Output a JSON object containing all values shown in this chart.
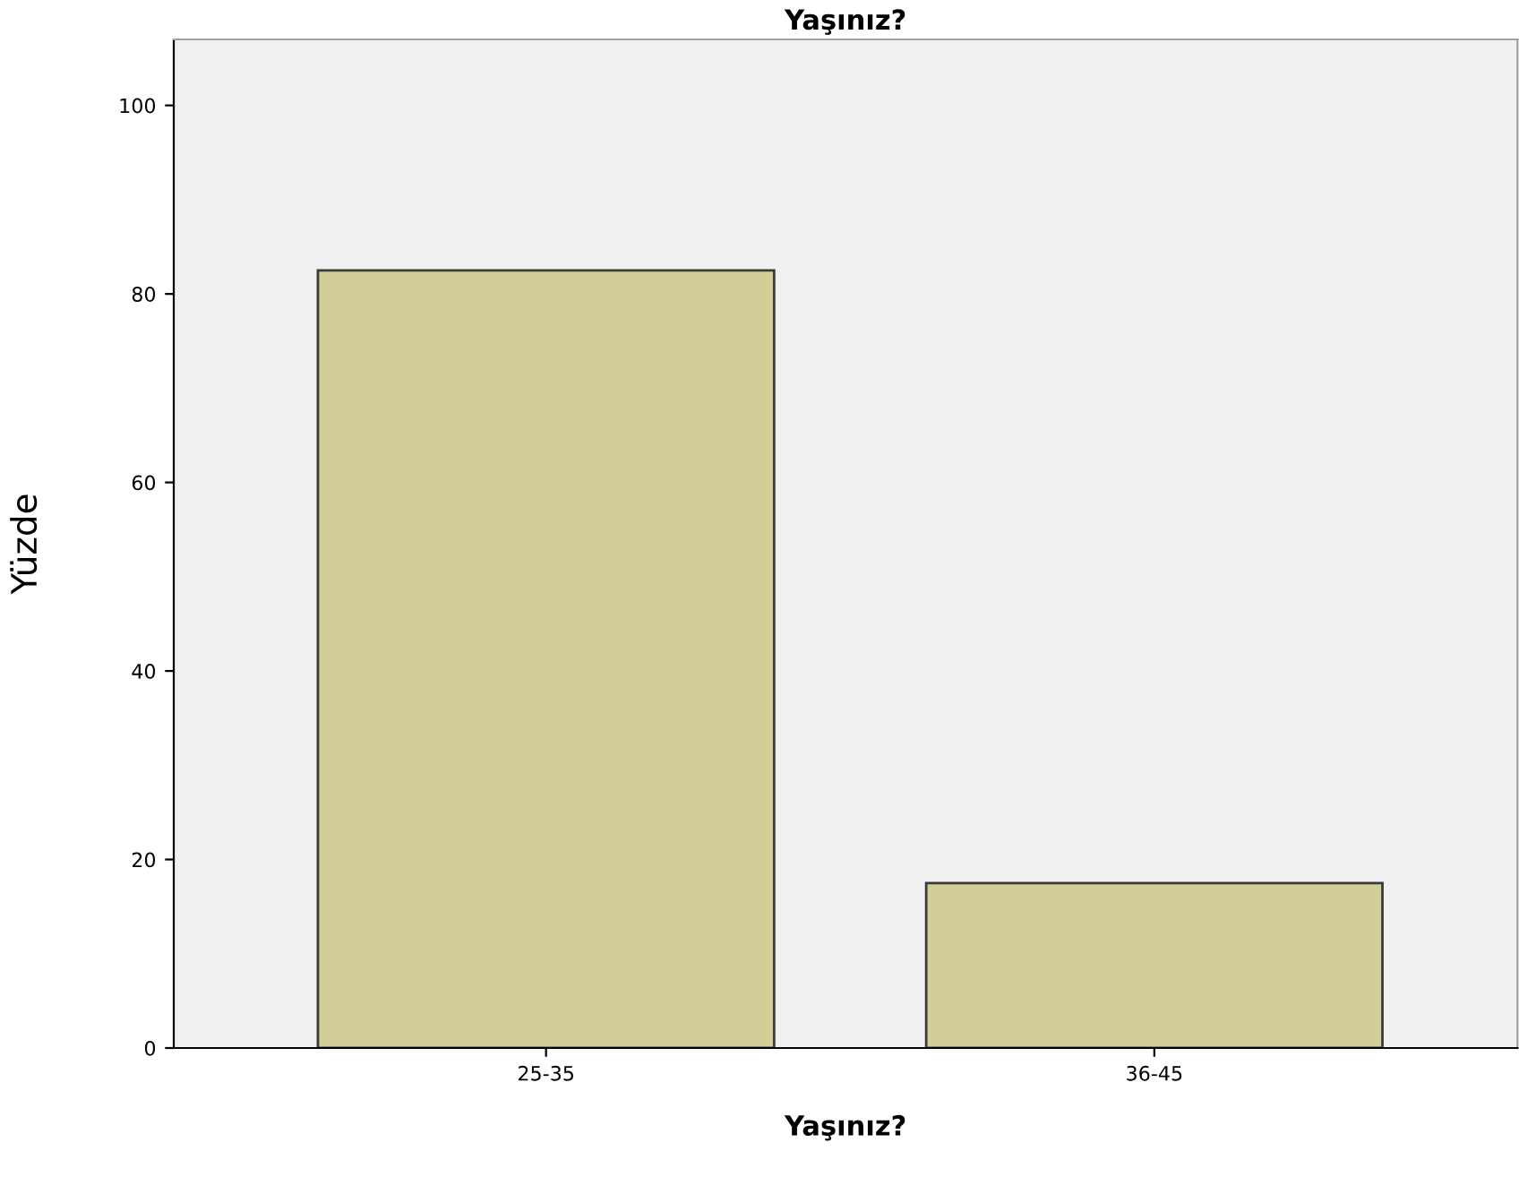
{
  "chart_data": {
    "type": "bar",
    "title": "Yaşınız?",
    "xlabel": "Yaşınız?",
    "ylabel": "Yüzde",
    "categories": [
      "25-35",
      "36-45"
    ],
    "values": [
      82.5,
      17.5
    ],
    "color": "#d3ce97",
    "ylim": [
      0,
      107
    ],
    "yticks": [
      0,
      20,
      40,
      60,
      80,
      100
    ],
    "grid": false,
    "legend": false
  }
}
